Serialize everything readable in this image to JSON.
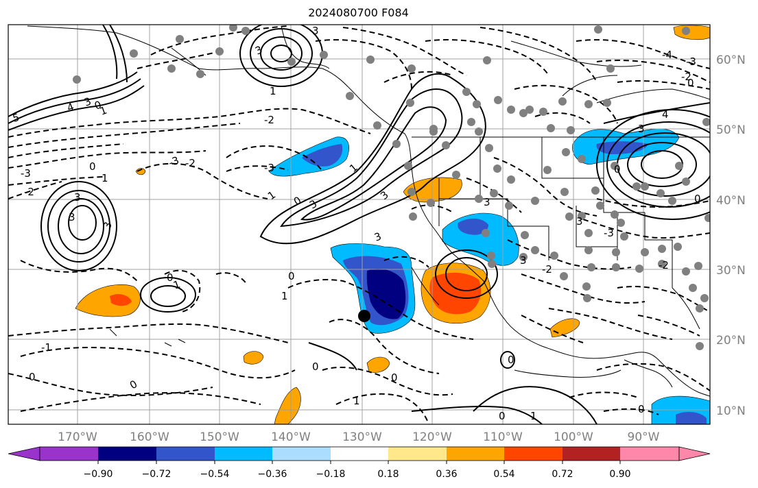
{
  "title": "2024080700 F084",
  "lon_labels": [
    "170°W",
    "160°W",
    "150°W",
    "140°W",
    "130°W",
    "120°W",
    "110°W",
    "100°W",
    "90°W"
  ],
  "lat_labels": [
    "60°N",
    "50°N",
    "40°N",
    "30°N",
    "20°N",
    "10°N"
  ],
  "colorbar": {
    "ticks": [
      "−0.90",
      "−0.72",
      "−0.54",
      "−0.36",
      "−0.18",
      "0.18",
      "0.36",
      "0.54",
      "0.72",
      "0.90"
    ],
    "colors": [
      "#9933cc",
      "#000080",
      "#3355cc",
      "#00bbff",
      "#aaddff",
      "#ffffff",
      "#ffe88a",
      "#ffa500",
      "#ff4500",
      "#b22222",
      "#ff88aa"
    ]
  },
  "contour_labels": [
    {
      "text": "5",
      "t": "dash"
    },
    {
      "text": "4",
      "t": "solid"
    },
    {
      "text": "3",
      "t": "solid"
    },
    {
      "text": "2",
      "t": "dash"
    },
    {
      "text": "1",
      "t": "dash"
    },
    {
      "text": "0",
      "t": "dash"
    },
    {
      "text": "-1",
      "t": "dash"
    },
    {
      "text": "-2",
      "t": "dash"
    },
    {
      "text": "-3",
      "t": "dash"
    },
    {
      "text": "-4",
      "t": "dash"
    }
  ],
  "marker_label": "",
  "shading_colors": {
    "dark_blue": "#000080",
    "mid_blue": "#3355cc",
    "light_blue": "#00bbff",
    "orange": "#ffa500",
    "red": "#ff4500"
  }
}
